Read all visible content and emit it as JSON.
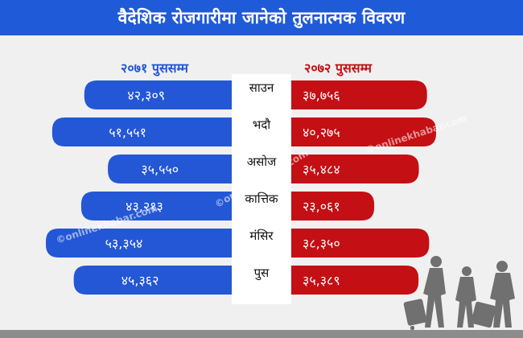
{
  "header": {
    "title": "वैदेशिक रोजगारीमा जानेको तुलनात्मक विवरण"
  },
  "watermark": "©onlinekhabar.com",
  "colors": {
    "left_bar": "#2457d6",
    "right_bar": "#c40f14",
    "center_column": "#ffffff",
    "banner": "#1f5ad8"
  },
  "chart_data": {
    "type": "bar",
    "layout": "butterfly",
    "categories": [
      "साउन",
      "भदौ",
      "असोज",
      "कात्तिक",
      "मंसिर",
      "पुस"
    ],
    "series": [
      {
        "name": "२०७१ पुससम्म",
        "side": "left",
        "values": [
          42309,
          51551,
          35550,
          43213,
          53354,
          45362
        ],
        "labels": [
          "४२,३०९",
          "५१,५५१",
          "३५,५५०",
          "४३,२१३",
          "५३,३५४",
          "४५,३६२"
        ]
      },
      {
        "name": "२०७२ पुससम्म",
        "side": "right",
        "values": [
          37756,
          40275,
          35484,
          23061,
          38350,
          35389
        ],
        "labels": [
          "३७,७५६",
          "४०,२७५",
          "३५,४८४",
          "२३,०६१",
          "३८,३५०",
          "३५,३८९"
        ]
      }
    ],
    "title": "वैदेशिक रोजगारीमा जानेको तुलनात्मक विवरण",
    "xlabel": "",
    "ylabel": "",
    "xlim": [
      0,
      60000
    ],
    "grid": false,
    "legend": "top"
  }
}
